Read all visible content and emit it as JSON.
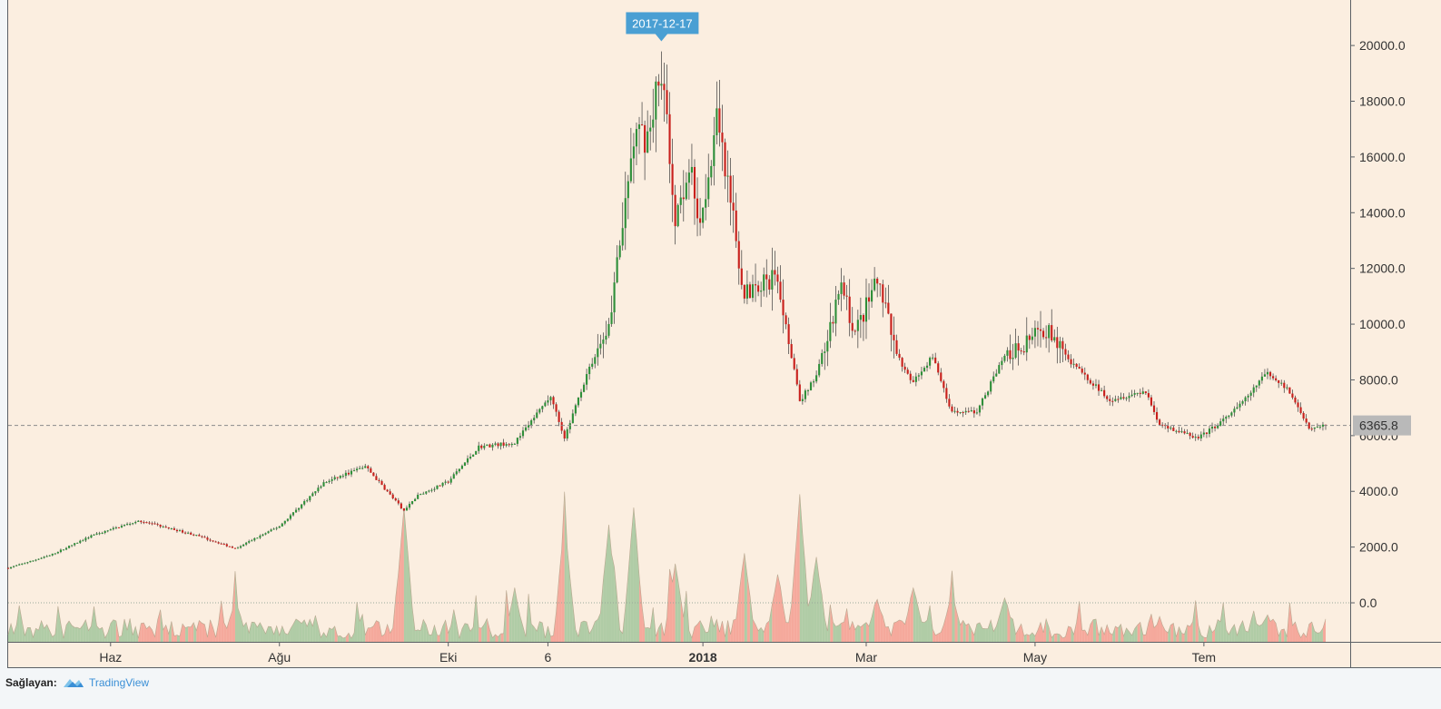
{
  "footer": {
    "provided_by": "Sağlayan:",
    "brand": "TradingView"
  },
  "colors": {
    "background": "#fbeee0",
    "up": "#2f8f3a",
    "down": "#c8201c",
    "vol_up": "#a7c8a0",
    "vol_down": "#f4a195",
    "marker": "#4a9fd3",
    "last_price_bg": "#b9b9b9"
  },
  "chart_data": {
    "type": "candlestick",
    "title": "",
    "xlabel": "",
    "ylabel": "",
    "ylim": [
      -1400,
      21600
    ],
    "y_ticks": [
      0,
      2000,
      4000,
      6000,
      8000,
      10000,
      12000,
      14000,
      16000,
      18000,
      20000
    ],
    "y_tick_labels": [
      "0.0",
      "2000.0",
      "4000.0",
      "6000.0",
      "8000.0",
      "10000.0",
      "12000.0",
      "14000.0",
      "16000.0",
      "18000.0",
      "20000.0"
    ],
    "x_ticks": [
      {
        "label": "Haz",
        "date": "2017-06-01",
        "bold": false
      },
      {
        "label": "Ağu",
        "date": "2017-08-01",
        "bold": false
      },
      {
        "label": "Eki",
        "date": "2017-10-01",
        "bold": false
      },
      {
        "label": "6",
        "date": "2017-11-06",
        "bold": false
      },
      {
        "label": "2018",
        "date": "2018-01-01",
        "bold": true
      },
      {
        "label": "Mar",
        "date": "2018-03-01",
        "bold": false
      },
      {
        "label": "May",
        "date": "2018-05-01",
        "bold": false
      },
      {
        "label": "Tem",
        "date": "2018-07-01",
        "bold": false
      }
    ],
    "date_range": [
      "2017-04-25",
      "2018-08-14"
    ],
    "last_price": 6365.8,
    "last_price_label": "6365.8",
    "marker": {
      "date": "2017-12-17",
      "label": "2017-12-17",
      "price": 19891
    },
    "price_anchors": [
      [
        "2017-04-25",
        1250
      ],
      [
        "2017-05-10",
        1700
      ],
      [
        "2017-05-25",
        2400
      ],
      [
        "2017-06-11",
        2950
      ],
      [
        "2017-07-01",
        2450
      ],
      [
        "2017-07-16",
        1950
      ],
      [
        "2017-08-01",
        2750
      ],
      [
        "2017-08-17",
        4300
      ],
      [
        "2017-09-01",
        4900
      ],
      [
        "2017-09-15",
        3300
      ],
      [
        "2017-09-20",
        3850
      ],
      [
        "2017-10-01",
        4350
      ],
      [
        "2017-10-12",
        5600
      ],
      [
        "2017-10-25",
        5750
      ],
      [
        "2017-11-07",
        7400
      ],
      [
        "2017-11-12",
        5900
      ],
      [
        "2017-11-20",
        8200
      ],
      [
        "2017-11-28",
        10000
      ],
      [
        "2017-12-07",
        16600
      ],
      [
        "2017-12-12",
        16800
      ],
      [
        "2017-12-17",
        19200
      ],
      [
        "2017-12-22",
        13900
      ],
      [
        "2017-12-27",
        15800
      ],
      [
        "2017-12-31",
        13800
      ],
      [
        "2018-01-06",
        17200
      ],
      [
        "2018-01-16",
        11200
      ],
      [
        "2018-01-28",
        11700
      ],
      [
        "2018-02-05",
        7200
      ],
      [
        "2018-02-11",
        8200
      ],
      [
        "2018-02-20",
        11300
      ],
      [
        "2018-02-25",
        9700
      ],
      [
        "2018-03-05",
        11500
      ],
      [
        "2018-03-12",
        8900
      ],
      [
        "2018-03-18",
        7900
      ],
      [
        "2018-03-25",
        8900
      ],
      [
        "2018-04-01",
        6800
      ],
      [
        "2018-04-10",
        6850
      ],
      [
        "2018-04-20",
        8900
      ],
      [
        "2018-05-05",
        9800
      ],
      [
        "2018-05-15",
        8500
      ],
      [
        "2018-05-28",
        7300
      ],
      [
        "2018-06-10",
        7600
      ],
      [
        "2018-06-15",
        6400
      ],
      [
        "2018-06-29",
        5900
      ],
      [
        "2018-07-10",
        6700
      ],
      [
        "2018-07-17",
        7400
      ],
      [
        "2018-07-24",
        8300
      ],
      [
        "2018-07-31",
        7700
      ],
      [
        "2018-08-08",
        6300
      ],
      [
        "2018-08-14",
        6365
      ]
    ],
    "volume_peaks": [
      [
        "2017-05-25",
        420
      ],
      [
        "2017-07-16",
        1500
      ],
      [
        "2017-09-15",
        4700
      ],
      [
        "2017-10-25",
        1800
      ],
      [
        "2017-11-12",
        4300
      ],
      [
        "2017-11-28",
        4100
      ],
      [
        "2017-12-07",
        4700
      ],
      [
        "2017-12-22",
        2800
      ],
      [
        "2018-01-16",
        3100
      ],
      [
        "2018-01-28",
        2400
      ],
      [
        "2018-02-05",
        5100
      ],
      [
        "2018-02-11",
        3000
      ],
      [
        "2018-03-05",
        1500
      ],
      [
        "2018-03-18",
        1900
      ],
      [
        "2018-04-01",
        1800
      ],
      [
        "2018-04-20",
        1500
      ],
      [
        "2018-06-15",
        800
      ],
      [
        "2018-07-24",
        900
      ]
    ]
  }
}
